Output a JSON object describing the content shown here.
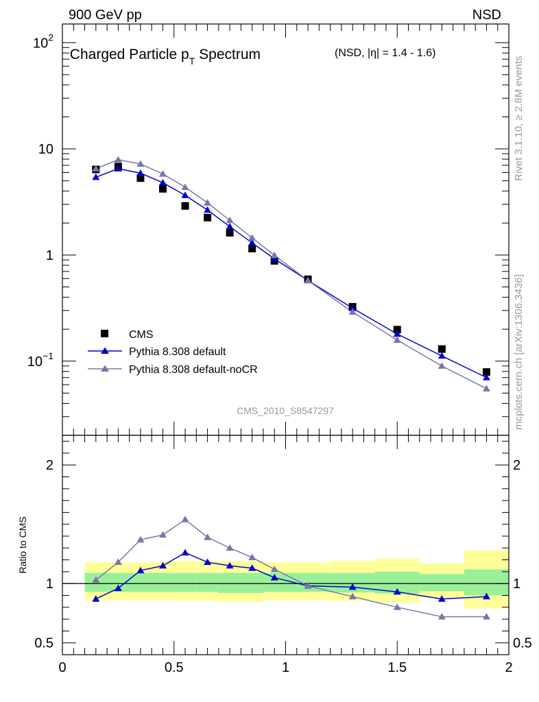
{
  "header": {
    "left": "900 GeV pp",
    "right": "NSD"
  },
  "chart_data": [
    {
      "type": "scatter",
      "title": "Charged Particle p",
      "title_subscript": "T",
      "title_tail": " Spectrum",
      "subtitle": "(NSD, |η| = 1.4 - 1.6)",
      "xlim": [
        0,
        2
      ],
      "ylim": [
        0.02,
        150
      ],
      "yscale": "log",
      "y_ticks_major": [
        {
          "v": 0.1,
          "base": "10",
          "exp": "−1"
        },
        {
          "v": 1,
          "base": "1",
          "exp": ""
        },
        {
          "v": 10,
          "base": "10",
          "exp": ""
        },
        {
          "v": 100,
          "base": "10",
          "exp": "2"
        }
      ],
      "analysis_label": "CMS_2010_S8547297",
      "legend_position": "lower-left",
      "series": [
        {
          "name": "CMS",
          "style": "data",
          "color": "#000000",
          "x": [
            0.15,
            0.25,
            0.35,
            0.45,
            0.55,
            0.65,
            0.75,
            0.85,
            0.95,
            1.1,
            1.3,
            1.5,
            1.7,
            1.9
          ],
          "y": [
            6.4,
            6.8,
            5.3,
            4.2,
            2.9,
            2.25,
            1.62,
            1.15,
            0.88,
            0.59,
            0.325,
            0.198,
            0.13,
            0.079
          ]
        },
        {
          "name": "Pythia 8.308 default",
          "style": "mc",
          "color": "#0000cc",
          "x": [
            0.15,
            0.25,
            0.35,
            0.45,
            0.55,
            0.65,
            0.75,
            0.85,
            0.95,
            1.1,
            1.3,
            1.5,
            1.7,
            1.9
          ],
          "y": [
            5.4,
            6.5,
            5.9,
            4.8,
            3.65,
            2.65,
            1.85,
            1.3,
            0.92,
            0.575,
            0.315,
            0.18,
            0.112,
            0.07
          ]
        },
        {
          "name": "Pythia 8.308 default-noCR",
          "style": "mc",
          "color": "#7777aa",
          "x": [
            0.15,
            0.25,
            0.35,
            0.45,
            0.55,
            0.65,
            0.75,
            0.85,
            0.95,
            1.1,
            1.3,
            1.5,
            1.7,
            1.9
          ],
          "y": [
            6.5,
            7.9,
            7.2,
            5.8,
            4.35,
            3.1,
            2.12,
            1.45,
            0.99,
            0.575,
            0.29,
            0.158,
            0.09,
            0.055
          ]
        }
      ]
    },
    {
      "type": "line",
      "ylabel": "Ratio to CMS",
      "xlim": [
        0,
        2
      ],
      "ylim": [
        0.4,
        2.25
      ],
      "x_ticks": [
        0,
        0.5,
        1,
        1.5,
        2
      ],
      "x_tick_labels": [
        "0",
        "0.5",
        "1",
        "1.5",
        "2"
      ],
      "y_ticks": [
        0.5,
        1,
        2
      ],
      "y_tick_labels": [
        "0.5",
        "1",
        "2"
      ],
      "bands": [
        {
          "x0": 0.1,
          "x1": 0.2,
          "inner": [
            0.93,
            1.09
          ],
          "outer": [
            0.86,
            1.18
          ]
        },
        {
          "x0": 0.2,
          "x1": 0.3,
          "inner": [
            0.93,
            1.09
          ],
          "outer": [
            0.86,
            1.18
          ]
        },
        {
          "x0": 0.3,
          "x1": 0.4,
          "inner": [
            0.93,
            1.09
          ],
          "outer": [
            0.86,
            1.18
          ]
        },
        {
          "x0": 0.4,
          "x1": 0.5,
          "inner": [
            0.93,
            1.09
          ],
          "outer": [
            0.86,
            1.18
          ]
        },
        {
          "x0": 0.5,
          "x1": 0.6,
          "inner": [
            0.93,
            1.09
          ],
          "outer": [
            0.855,
            1.19
          ]
        },
        {
          "x0": 0.6,
          "x1": 0.7,
          "inner": [
            0.93,
            1.09
          ],
          "outer": [
            0.855,
            1.19
          ]
        },
        {
          "x0": 0.7,
          "x1": 0.8,
          "inner": [
            0.92,
            1.09
          ],
          "outer": [
            0.845,
            1.19
          ]
        },
        {
          "x0": 0.8,
          "x1": 0.9,
          "inner": [
            0.92,
            1.09
          ],
          "outer": [
            0.845,
            1.19
          ]
        },
        {
          "x0": 0.9,
          "x1": 1.0,
          "inner": [
            0.93,
            1.09
          ],
          "outer": [
            0.86,
            1.18
          ]
        },
        {
          "x0": 1.0,
          "x1": 1.2,
          "inner": [
            0.93,
            1.09
          ],
          "outer": [
            0.86,
            1.18
          ]
        },
        {
          "x0": 1.2,
          "x1": 1.4,
          "inner": [
            0.925,
            1.09
          ],
          "outer": [
            0.855,
            1.19
          ]
        },
        {
          "x0": 1.4,
          "x1": 1.6,
          "inner": [
            0.915,
            1.1
          ],
          "outer": [
            0.84,
            1.21
          ]
        },
        {
          "x0": 1.6,
          "x1": 1.8,
          "inner": [
            0.935,
            1.08
          ],
          "outer": [
            0.88,
            1.17
          ]
        },
        {
          "x0": 1.8,
          "x1": 2.0,
          "inner": [
            0.9,
            1.12
          ],
          "outer": [
            0.79,
            1.28
          ]
        }
      ],
      "band_colors": {
        "inner": "#99f099",
        "outer": "#ffff99"
      },
      "series": [
        {
          "name": "Pythia 8.308 default",
          "color": "#0000cc",
          "x": [
            0.15,
            0.25,
            0.35,
            0.45,
            0.55,
            0.65,
            0.75,
            0.85,
            0.95,
            1.1,
            1.3,
            1.5,
            1.7,
            1.9
          ],
          "y": [
            0.87,
            0.96,
            1.11,
            1.15,
            1.26,
            1.18,
            1.15,
            1.13,
            1.05,
            0.98,
            0.97,
            0.93,
            0.87,
            0.89
          ]
        },
        {
          "name": "Pythia 8.308 default-noCR",
          "color": "#7777aa",
          "x": [
            0.15,
            0.25,
            0.35,
            0.45,
            0.55,
            0.65,
            0.75,
            0.85,
            0.95,
            1.1,
            1.3,
            1.5,
            1.7,
            1.9
          ],
          "y": [
            1.03,
            1.18,
            1.37,
            1.41,
            1.54,
            1.39,
            1.3,
            1.22,
            1.12,
            0.98,
            0.89,
            0.8,
            0.72,
            0.72
          ]
        }
      ]
    }
  ],
  "side_labels": {
    "top": "Rivet 3.1.10, ≥ 2.8M events",
    "bottom": "mcplots.cern.ch [arXiv:1306.3436]"
  },
  "colors": {
    "frame": "#000000",
    "watermark": "#999999"
  }
}
